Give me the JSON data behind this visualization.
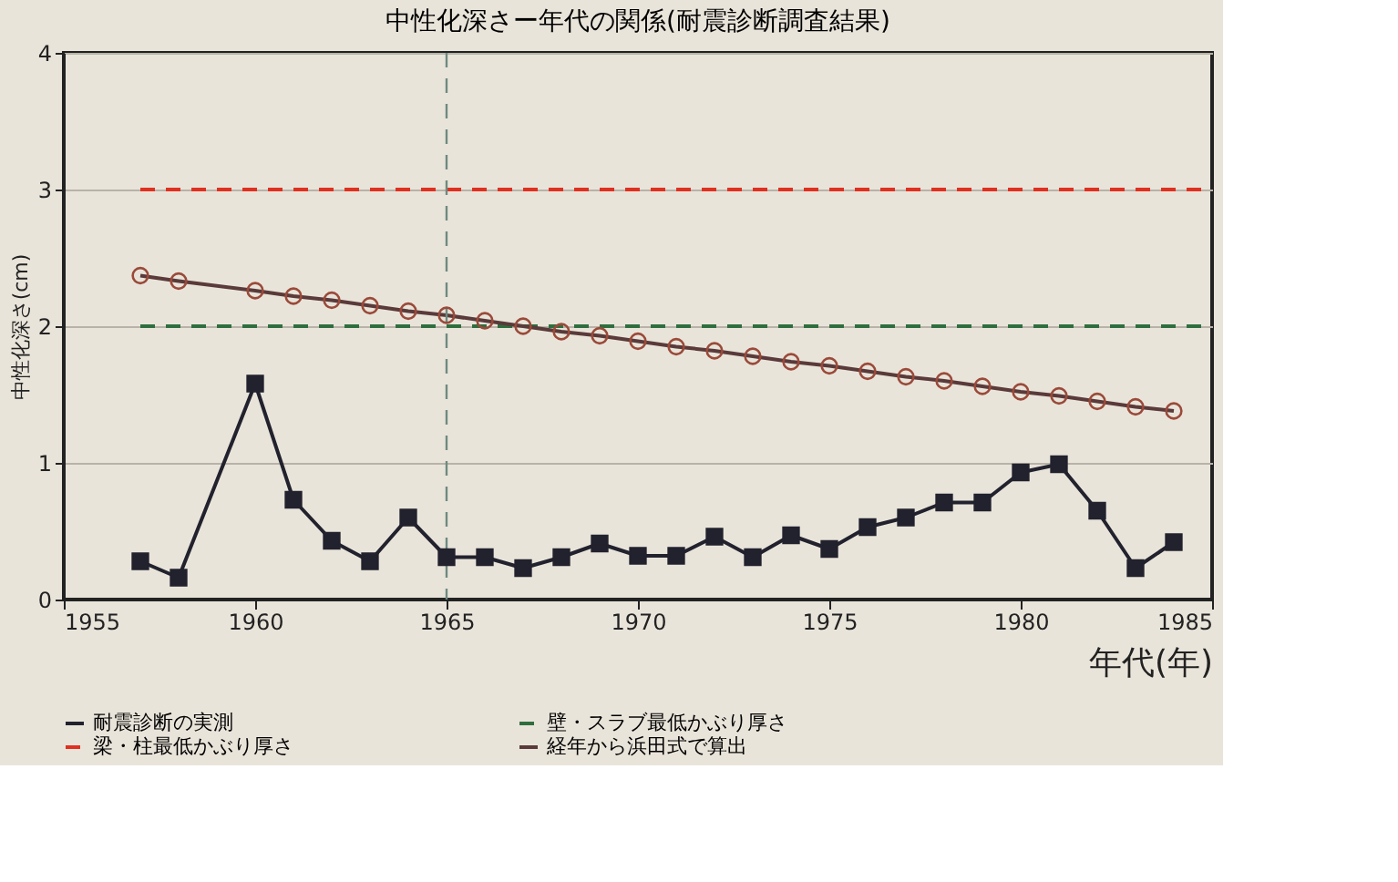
{
  "chart_data": {
    "type": "line",
    "title": "中性化深さー年代の関係(耐震診断調査結果)",
    "xlabel": "年代(年)",
    "ylabel": "中性化深さ(cm)",
    "xlim": [
      1955,
      1985
    ],
    "xticks": [
      1955,
      1960,
      1965,
      1970,
      1975,
      1980,
      1985
    ],
    "ylim": [
      0,
      4
    ],
    "yticks": [
      0,
      1,
      2,
      3,
      4
    ],
    "grid": "y",
    "legend": "bottom left",
    "ref_lines": [
      {
        "axis": "x",
        "value": 1965,
        "color": "#6f8a80",
        "line_style": "dashed"
      }
    ],
    "series": [
      {
        "name": "耐震診断の実測",
        "color": "#22222e",
        "marker": "square",
        "line_style": "solid",
        "x": [
          1957,
          1958,
          1960,
          1961,
          1962,
          1963,
          1964,
          1965,
          1966,
          1967,
          1968,
          1969,
          1970,
          1971,
          1972,
          1973,
          1974,
          1975,
          1976,
          1977,
          1978,
          1979,
          1980,
          1981,
          1982,
          1983,
          1984
        ],
        "values": [
          0.28,
          0.16,
          1.58,
          0.73,
          0.43,
          0.28,
          0.6,
          0.31,
          0.31,
          0.23,
          0.31,
          0.41,
          0.32,
          0.32,
          0.46,
          0.31,
          0.47,
          0.37,
          0.53,
          0.6,
          0.71,
          0.71,
          0.93,
          0.99,
          0.65,
          0.23,
          0.42
        ]
      },
      {
        "name": "壁・スラブ最低かぶり厚さ",
        "color": "#2e6e3e",
        "marker": "none",
        "line_style": "dashed",
        "x": [
          1957,
          1985
        ],
        "values": [
          2,
          2
        ]
      },
      {
        "name": "梁・柱最低かぶり厚さ",
        "color": "#e03020",
        "marker": "none",
        "line_style": "dashed",
        "x": [
          1957,
          1985
        ],
        "values": [
          3,
          3
        ]
      },
      {
        "name": "経年から浜田式で算出",
        "color": "#5a3a3a",
        "marker": "circle",
        "line_style": "solid",
        "x": [
          1957,
          1958,
          1960,
          1961,
          1962,
          1963,
          1964,
          1965,
          1966,
          1967,
          1968,
          1969,
          1970,
          1971,
          1972,
          1973,
          1974,
          1975,
          1976,
          1977,
          1978,
          1979,
          1980,
          1981,
          1982,
          1983,
          1984
        ],
        "values": [
          2.37,
          2.33,
          2.26,
          2.22,
          2.19,
          2.15,
          2.11,
          2.08,
          2.04,
          2.0,
          1.96,
          1.93,
          1.89,
          1.85,
          1.82,
          1.78,
          1.74,
          1.71,
          1.67,
          1.63,
          1.6,
          1.56,
          1.52,
          1.49,
          1.45,
          1.41,
          1.38
        ]
      }
    ]
  }
}
